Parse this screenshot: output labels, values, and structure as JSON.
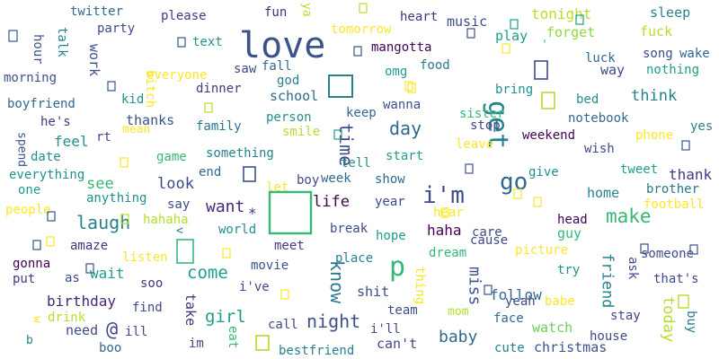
{
  "word_cloud": {
    "background": "#ffffff",
    "words": [
      {
        "text": "love",
        "color": "#3b528b"
      },
      {
        "text": "get",
        "color": "#26828e"
      },
      {
        "text": "go",
        "color": "#31688e"
      },
      {
        "text": "i'm",
        "color": "#3e4a89"
      },
      {
        "text": "make",
        "color": "#35b779"
      },
      {
        "text": "p",
        "color": "#35b779"
      },
      {
        "text": "night",
        "color": "#3b528b"
      },
      {
        "text": "know",
        "color": "#2a788e"
      },
      {
        "text": "time",
        "color": "#3e4a89"
      },
      {
        "text": "day",
        "color": "#31688e"
      },
      {
        "text": "laugh",
        "color": "#26828e"
      },
      {
        "text": "want",
        "color": "#482878"
      },
      {
        "text": "life",
        "color": "#440154"
      },
      {
        "text": "come",
        "color": "#1f9e89"
      },
      {
        "text": "girl",
        "color": "#1f9e89"
      },
      {
        "text": "baby",
        "color": "#31688e"
      },
      {
        "text": "miss",
        "color": "#3b528b"
      },
      {
        "text": "friend",
        "color": "#26828e"
      },
      {
        "text": "follow",
        "color": "#31688e"
      },
      {
        "text": "think",
        "color": "#26828e"
      },
      {
        "text": "see",
        "color": "#35b779"
      },
      {
        "text": "feel",
        "color": "#21918c"
      },
      {
        "text": "look",
        "color": "#3e4a89"
      },
      {
        "text": "haha",
        "color": "#440154"
      },
      {
        "text": "birthday",
        "color": "#482878"
      },
      {
        "text": "wait",
        "color": "#1f9e89"
      },
      {
        "text": "need",
        "color": "#3e4a89"
      },
      {
        "text": "take",
        "color": "#46337e"
      },
      {
        "text": "today",
        "color": "#b5de2b"
      },
      {
        "text": "watch",
        "color": "#6ece58"
      },
      {
        "text": "home",
        "color": "#26828e"
      },
      {
        "text": "thank",
        "color": "#443983"
      },
      {
        "text": "tonight",
        "color": "#b5de2b"
      },
      {
        "text": "fuck",
        "color": "#b5de2b"
      },
      {
        "text": "sleep",
        "color": "#26828e"
      },
      {
        "text": "music",
        "color": "#3e4a89"
      },
      {
        "text": "heart",
        "color": "#46337e"
      },
      {
        "text": "play",
        "color": "#1f9e89"
      },
      {
        "text": "forget",
        "color": "#90d743"
      },
      {
        "text": "tomorrow",
        "color": "#fde725"
      },
      {
        "text": "mangotta",
        "color": "#440154"
      },
      {
        "text": "food",
        "color": "#2a788e"
      },
      {
        "text": "omg",
        "color": "#1f9e89"
      },
      {
        "text": "fall",
        "color": "#31688e"
      },
      {
        "text": "god",
        "color": "#26828e"
      },
      {
        "text": "school",
        "color": "#31688e"
      },
      {
        "text": "saw",
        "color": "#3e4a89"
      },
      {
        "text": "dinner",
        "color": "#443983"
      },
      {
        "text": "everyone",
        "color": "#fde725"
      },
      {
        "text": "thanks",
        "color": "#3b528b"
      },
      {
        "text": "family",
        "color": "#2a788e"
      },
      {
        "text": "person",
        "color": "#21918c"
      },
      {
        "text": "smile",
        "color": "#b5de2b"
      },
      {
        "text": "keep",
        "color": "#31688e"
      },
      {
        "text": "wanna",
        "color": "#3b528b"
      },
      {
        "text": "sister",
        "color": "#35b779"
      },
      {
        "text": "stop",
        "color": "#3e4a89"
      },
      {
        "text": "leave",
        "color": "#fde725"
      },
      {
        "text": "weekend",
        "color": "#440154"
      },
      {
        "text": "notebook",
        "color": "#31688e"
      },
      {
        "text": "wish",
        "color": "#3e4a89"
      },
      {
        "text": "phone",
        "color": "#fde725"
      },
      {
        "text": "yes",
        "color": "#26828e"
      },
      {
        "text": "bed",
        "color": "#21918c"
      },
      {
        "text": "way",
        "color": "#3e4a89"
      },
      {
        "text": "nothing",
        "color": "#1f9e89"
      },
      {
        "text": "song",
        "color": "#3e4a89"
      },
      {
        "text": "wake",
        "color": "#31688e"
      },
      {
        "text": "luck",
        "color": "#31688e"
      },
      {
        "text": "bring",
        "color": "#21918c"
      },
      {
        "text": "twitter",
        "color": "#31688e"
      },
      {
        "text": "please",
        "color": "#443983"
      },
      {
        "text": "fun",
        "color": "#46337e"
      },
      {
        "text": "party",
        "color": "#3e4a89"
      },
      {
        "text": "talk",
        "color": "#26828e"
      },
      {
        "text": "text",
        "color": "#21918c"
      },
      {
        "text": "work",
        "color": "#3b528b"
      },
      {
        "text": "hour",
        "color": "#3b528b"
      },
      {
        "text": "morning",
        "color": "#3b528b"
      },
      {
        "text": "bitch",
        "color": "#fde725"
      },
      {
        "text": "kid",
        "color": "#21918c"
      },
      {
        "text": "mean",
        "color": "#fde725"
      },
      {
        "text": "rt",
        "color": "#3e4a89"
      },
      {
        "text": "boyfriend",
        "color": "#31688e"
      },
      {
        "text": "he's",
        "color": "#443983"
      },
      {
        "text": "date",
        "color": "#21918c"
      },
      {
        "text": "spend",
        "color": "#3b528b"
      },
      {
        "text": "everything",
        "color": "#21918c"
      },
      {
        "text": "one",
        "color": "#1f9e89"
      },
      {
        "text": "people",
        "color": "#fde725"
      },
      {
        "text": "gonna",
        "color": "#440154"
      },
      {
        "text": "put",
        "color": "#443983"
      },
      {
        "text": "as",
        "color": "#3e4a89"
      },
      {
        "text": "amaze",
        "color": "#46337e"
      },
      {
        "text": "drink",
        "color": "#b5de2b"
      },
      {
        "text": "w",
        "color": "#fde725"
      },
      {
        "text": "b",
        "color": "#26828e"
      },
      {
        "text": "boo",
        "color": "#31688e"
      },
      {
        "text": "im",
        "color": "#3e4a89"
      },
      {
        "text": "eat",
        "color": "#35b779"
      },
      {
        "text": "ill",
        "color": "#3e4a89"
      },
      {
        "text": "find",
        "color": "#3e4a89"
      },
      {
        "text": "soo",
        "color": "#46337e"
      },
      {
        "text": "listen",
        "color": "#fde725"
      },
      {
        "text": "hahaha",
        "color": "#b5de2b"
      },
      {
        "text": "anything",
        "color": "#21918c"
      },
      {
        "text": "game",
        "color": "#35b779"
      },
      {
        "text": "something",
        "color": "#26828e"
      },
      {
        "text": "end",
        "color": "#31688e"
      },
      {
        "text": "say",
        "color": "#3e4a89"
      },
      {
        "text": "let",
        "color": "#fde725"
      },
      {
        "text": "boy",
        "color": "#3e4a89"
      },
      {
        "text": "week",
        "color": "#31688e"
      },
      {
        "text": "tell",
        "color": "#21918c"
      },
      {
        "text": "show",
        "color": "#31688e"
      },
      {
        "text": "start",
        "color": "#1f9e89"
      },
      {
        "text": "year",
        "color": "#3e4a89"
      },
      {
        "text": "hear",
        "color": "#fde725"
      },
      {
        "text": "care",
        "color": "#3e4a89"
      },
      {
        "text": "give",
        "color": "#21918c"
      },
      {
        "text": "tweet",
        "color": "#1f9e89"
      },
      {
        "text": "brother",
        "color": "#2a788e"
      },
      {
        "text": "football",
        "color": "#fde725"
      },
      {
        "text": "head",
        "color": "#440154"
      },
      {
        "text": "someone",
        "color": "#3e4a89"
      },
      {
        "text": "guy",
        "color": "#35b779"
      },
      {
        "text": "cause",
        "color": "#3e4a89"
      },
      {
        "text": "picture",
        "color": "#fde725"
      },
      {
        "text": "dream",
        "color": "#35b779"
      },
      {
        "text": "hope",
        "color": "#1f9e89"
      },
      {
        "text": "break",
        "color": "#3e4a89"
      },
      {
        "text": "world",
        "color": "#21918c"
      },
      {
        "text": "meet",
        "color": "#443983"
      },
      {
        "text": "movie",
        "color": "#3b528b"
      },
      {
        "text": "place",
        "color": "#26828e"
      },
      {
        "text": "i've",
        "color": "#3e4a89"
      },
      {
        "text": "call",
        "color": "#3e4a89"
      },
      {
        "text": "i'll",
        "color": "#3e4a89"
      },
      {
        "text": "shit",
        "color": "#3e4a89"
      },
      {
        "text": "thing",
        "color": "#fde725"
      },
      {
        "text": "team",
        "color": "#3e4a89"
      },
      {
        "text": "mom",
        "color": "#b5de2b"
      },
      {
        "text": "can't",
        "color": "#3e4a89"
      },
      {
        "text": "bestfriend",
        "color": "#26828e"
      },
      {
        "text": "yeah",
        "color": "#3e4a89"
      },
      {
        "text": "babe",
        "color": "#fde725"
      },
      {
        "text": "face",
        "color": "#31688e"
      },
      {
        "text": "cute",
        "color": "#26828e"
      },
      {
        "text": "christmas",
        "color": "#3b528b"
      },
      {
        "text": "house",
        "color": "#3e4a89"
      },
      {
        "text": "stay",
        "color": "#3e4a89"
      },
      {
        "text": "buy",
        "color": "#26828e"
      },
      {
        "text": "that's",
        "color": "#3e4a89"
      },
      {
        "text": "ask",
        "color": "#3e4a89"
      },
      {
        "text": "try",
        "color": "#21918c"
      },
      {
        "text": "@",
        "color": "#3e4a89"
      },
      {
        "text": "*",
        "color": "#46337e"
      },
      {
        "text": "<",
        "color": "#26828e"
      },
      {
        "text": "ya",
        "color": "#b5de2b"
      },
      {
        "text": "'",
        "color": "#35b779"
      }
    ]
  }
}
